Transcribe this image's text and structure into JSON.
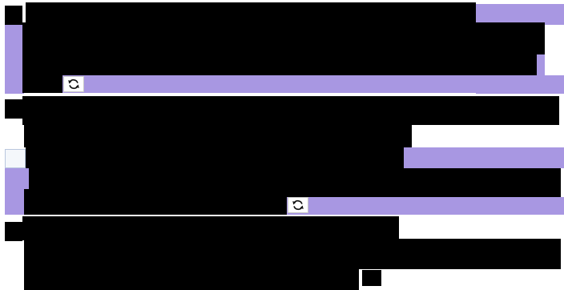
{
  "icons": {
    "refresh_top": "refresh-icon",
    "refresh_middle": "refresh-icon"
  },
  "colors": {
    "accent": "#a897e2",
    "redaction": "#000000",
    "field_fill": "#f4f7fb",
    "field_border": "#b9c7de"
  }
}
